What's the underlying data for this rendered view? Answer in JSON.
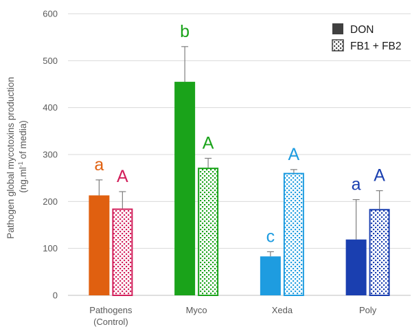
{
  "chart_data": {
    "type": "bar",
    "ylabel_line1": "Pathogen global mycotoxins production",
    "ylabel_line2_pre": "(ng.ml",
    "ylabel_line2_sup": "-1",
    "ylabel_line2_post": " of media)",
    "ylim": [
      0,
      600
    ],
    "yticks": [
      0,
      100,
      200,
      300,
      400,
      500,
      600
    ],
    "grid": true,
    "legend_position": "top-right",
    "categories": [
      {
        "line1": "Pathogens",
        "line2": "(Control)"
      },
      {
        "line1": "Myco",
        "line2": ""
      },
      {
        "line1": "Xeda",
        "line2": ""
      },
      {
        "line1": "Poly",
        "line2": ""
      }
    ],
    "series": [
      {
        "name": "DON",
        "pattern": "solid",
        "legend_color": "#404040",
        "values": [
          213,
          455,
          83,
          119
        ],
        "errors": [
          33,
          75,
          10,
          85
        ],
        "letters": [
          "a",
          "b",
          "c",
          "a"
        ]
      },
      {
        "name": "FB1 + FB2",
        "pattern": "dotted",
        "legend_color": "#404040",
        "values": [
          185,
          272,
          261,
          184
        ],
        "errors": [
          36,
          20,
          7,
          39
        ],
        "letters": [
          "A",
          "A",
          "A",
          "A"
        ]
      }
    ],
    "colors": [
      "#E06010",
      "#1AA31A",
      "#1E9CE0",
      "#1A3FB0"
    ],
    "fb_colors": [
      "#D21E5A",
      "#1AA31A",
      "#1E9CE0",
      "#1A3FB0"
    ]
  }
}
